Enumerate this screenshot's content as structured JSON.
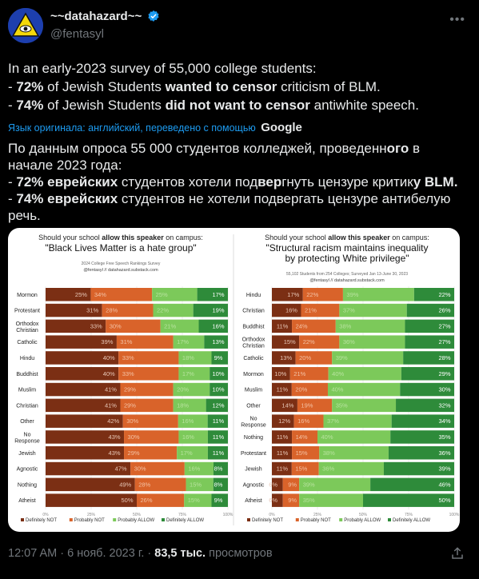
{
  "author": {
    "name": "~~datahazard~~",
    "handle": "@fentasyl"
  },
  "tweet": {
    "lines": [
      [
        "In an early-2023 survey of 55,000 college students:"
      ],
      [
        "- ",
        "72%",
        " of Jewish Students ",
        "wanted to censor",
        " criticism of BLM."
      ],
      [
        "- ",
        "74%",
        " of Jewish Students ",
        "did not want to censor",
        " antiwhite speech."
      ]
    ]
  },
  "translation": {
    "label": "Язык оригинала: английский, переведено с помощью",
    "brand": "Google",
    "lines": [
      [
        "По данным опроса 55 000 студентов колледжей, проведенн",
        "ого",
        " в"
      ],
      [
        "начале 2023 года:"
      ],
      [
        "- ",
        "72% еврейских",
        " студентов хотели под",
        "вер",
        "гнуть цензуре критик",
        "у BLM."
      ],
      [
        "- ",
        "74% еврейских",
        " студентов не хотели подвергать цензуре антибелую"
      ],
      [
        "речь."
      ]
    ]
  },
  "footer": {
    "time": "12:07 AM · 6 нояб. 2023 г. · ",
    "views": "83,5 тыс.",
    "views_label": " просмотров"
  },
  "colors": {
    "definitely_not": "#7b2f14",
    "probably_not": "#d9632a",
    "probably_allow": "#7cc95a",
    "definitely_allow": "#2e8b3a"
  },
  "chart_data": [
    {
      "type": "bar",
      "stacked": true,
      "orientation": "horizontal",
      "question_prefix": "Should your school ",
      "question_bold": "allow this speaker",
      "question_suffix": " on campus:",
      "title": "\"Black Lives Matter is a hate group\"",
      "subtitle": "2024 College Free Speech Rankings Survey",
      "credit": "@fentasyl // datahazard.substack.com",
      "categories": [
        "Mormon",
        "Protestant",
        "Orthodox Christian",
        "Catholic",
        "Hindu",
        "Buddhist",
        "Muslim",
        "Christian",
        "Other",
        "No Response",
        "Jewish",
        "Agnostic",
        "Nothing",
        "Atheist"
      ],
      "series": [
        {
          "name": "Definitely NOT",
          "values": [
            25,
            31,
            33,
            39,
            40,
            40,
            41,
            41,
            42,
            43,
            43,
            47,
            49,
            50
          ]
        },
        {
          "name": "Probably NOT",
          "values": [
            34,
            28,
            30,
            31,
            33,
            33,
            29,
            29,
            30,
            30,
            29,
            30,
            28,
            26
          ]
        },
        {
          "name": "Probably ALLOW",
          "values": [
            25,
            22,
            21,
            17,
            18,
            17,
            20,
            18,
            16,
            16,
            17,
            16,
            15,
            15
          ]
        },
        {
          "name": "Definitely ALLOW",
          "values": [
            17,
            19,
            16,
            13,
            9,
            10,
            10,
            12,
            11,
            11,
            11,
            8,
            8,
            9
          ]
        }
      ],
      "xticks": [
        "0%",
        "25%",
        "50%",
        "75%",
        "100%"
      ]
    },
    {
      "type": "bar",
      "stacked": true,
      "orientation": "horizontal",
      "question_prefix": "Should your school ",
      "question_bold": "allow this speaker",
      "question_suffix": " on campus:",
      "title": "\"Structural racism maintains inequality by protecting White privilege\"",
      "title_lines": [
        "\"Structural racism maintains inequality",
        "by protecting White privilege\""
      ],
      "subtitle": "55,102 Students from 254 Colleges; Surveyed Jan 13-June 30, 2023",
      "credit": "@fentasyl // datahazard.substack.com",
      "categories": [
        "Hindu",
        "Christian",
        "Buddhist",
        "Orthodox Christian",
        "Catholic",
        "Mormon",
        "Muslim",
        "Other",
        "No Response",
        "Nothing",
        "Protestant",
        "Jewish",
        "Agnostic",
        "Atheist"
      ],
      "series": [
        {
          "name": "Definitely NOT",
          "values": [
            17,
            16,
            11,
            15,
            13,
            10,
            11,
            14,
            12,
            11,
            11,
            11,
            6,
            6
          ]
        },
        {
          "name": "Probably NOT",
          "values": [
            22,
            21,
            24,
            22,
            20,
            21,
            20,
            19,
            16,
            14,
            15,
            15,
            9,
            9
          ]
        },
        {
          "name": "Probably ALLOW",
          "values": [
            39,
            37,
            38,
            36,
            39,
            40,
            40,
            35,
            37,
            40,
            38,
            36,
            39,
            35
          ]
        },
        {
          "name": "Definitely ALLOW",
          "values": [
            22,
            26,
            27,
            27,
            28,
            29,
            30,
            32,
            34,
            35,
            36,
            39,
            46,
            50
          ]
        }
      ],
      "xticks": [
        "0%",
        "25%",
        "50%",
        "75%",
        "100%"
      ]
    }
  ]
}
